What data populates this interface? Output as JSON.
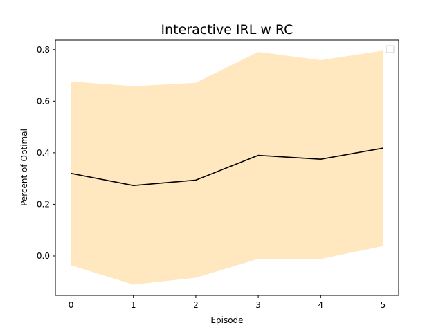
{
  "chart_data": {
    "type": "line",
    "title": "Interactive IRL w RC",
    "xlabel": "Episode",
    "ylabel": "Percent of Optimal",
    "x": [
      0,
      1,
      2,
      3,
      4,
      5
    ],
    "series": [
      {
        "values": [
          0.32,
          0.273,
          0.294,
          0.39,
          0.375,
          0.418
        ],
        "color": "#000000",
        "band_upper": [
          0.675,
          0.657,
          0.67,
          0.79,
          0.758,
          0.795
        ],
        "band_lower": [
          -0.035,
          -0.11,
          -0.083,
          -0.01,
          -0.01,
          0.04
        ],
        "band_color": "#ffe8bf"
      }
    ],
    "xticks": [
      "0",
      "1",
      "2",
      "3",
      "4",
      "5"
    ],
    "yticks": [
      "0.0",
      "0.2",
      "0.4",
      "0.6",
      "0.8"
    ],
    "ytick_values": [
      0.0,
      0.2,
      0.4,
      0.6,
      0.8
    ],
    "xlim": [
      -0.25,
      5.25
    ],
    "ylim": [
      -0.153,
      0.837
    ],
    "grid": false,
    "legend": {
      "location": "top-right",
      "entries": []
    }
  }
}
